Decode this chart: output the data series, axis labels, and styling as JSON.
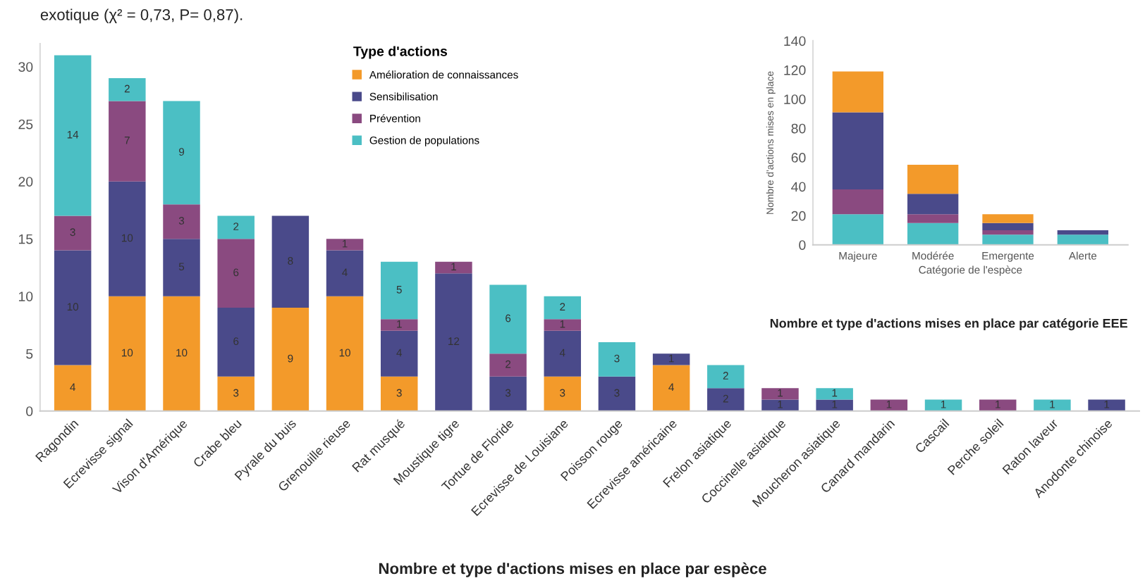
{
  "chart_data": [
    {
      "type": "bar",
      "stacked": true,
      "title": "Nombre et type d'actions mises en place par espèce",
      "legend_title": "Type d'actions",
      "legend": "top",
      "grid": false,
      "data_labels": true,
      "annotations": [
        "exotique (χ² = 0,73, P= 0,87)."
      ],
      "categories": [
        "Ragondin",
        "Ecrevisse signal",
        "Vison d'Amérique",
        "Crabe bleu",
        "Pyrale du buis",
        "Grenouille rieuse",
        "Rat musqué",
        "Moustique tigre",
        "Tortue de Floride",
        "Ecrevisse de Louisiane",
        "Poisson rouge",
        "Ecrevisse américaine",
        "Frelon asiatique",
        "Coccinelle asiatique",
        "Moucheron asiatique",
        "Canard mandarin",
        "Cascail",
        "Perche soleil",
        "Raton laveur",
        "Anodonte chinoise"
      ],
      "ylim": [
        0,
        32
      ],
      "yticks": [
        0,
        5,
        10,
        15,
        20,
        25,
        30
      ],
      "series": [
        {
          "name": "Amélioration de connaissances",
          "color": "#f39a2a",
          "values": [
            4,
            10,
            10,
            3,
            9,
            10,
            3,
            null,
            null,
            3,
            null,
            4,
            null,
            null,
            null,
            null,
            null,
            null,
            null,
            null
          ]
        },
        {
          "name": "Sensibilisation",
          "color": "#4a4a8a",
          "values": [
            10,
            10,
            5,
            6,
            8,
            4,
            4,
            12,
            3,
            4,
            3,
            1,
            2,
            1,
            1,
            null,
            null,
            null,
            null,
            1
          ]
        },
        {
          "name": "Prévention",
          "color": "#8a4a80",
          "values": [
            3,
            7,
            3,
            6,
            null,
            1,
            1,
            1,
            2,
            1,
            null,
            null,
            null,
            1,
            null,
            1,
            null,
            1,
            null,
            null
          ]
        },
        {
          "name": "Gestion de populations",
          "color": "#4bbfc4",
          "values": [
            14,
            2,
            9,
            2,
            null,
            null,
            5,
            null,
            6,
            2,
            3,
            null,
            2,
            null,
            1,
            null,
            1,
            null,
            1,
            null
          ]
        }
      ]
    },
    {
      "type": "bar",
      "stacked": true,
      "title": "Nombre et type d'actions mises en place par catégorie EEE",
      "xlabel": "Catégorie de l'espèce",
      "ylabel": "Nombre d'actions mises en place",
      "grid": false,
      "categories": [
        "Majeure",
        "Modérée",
        "Emergente",
        "Alerte"
      ],
      "ylim": [
        0,
        140
      ],
      "yticks": [
        0,
        20,
        40,
        60,
        80,
        100,
        120,
        140
      ],
      "series": [
        {
          "color": "#4bbfc4",
          "values": [
            21,
            15,
            7,
            7
          ]
        },
        {
          "color": "#8a4a80",
          "values": [
            17,
            6,
            3,
            null
          ]
        },
        {
          "color": "#4a4a8a",
          "values": [
            53,
            14,
            5,
            3
          ]
        },
        {
          "color": "#f39a2a",
          "values": [
            28,
            20,
            6,
            null
          ]
        }
      ]
    }
  ]
}
